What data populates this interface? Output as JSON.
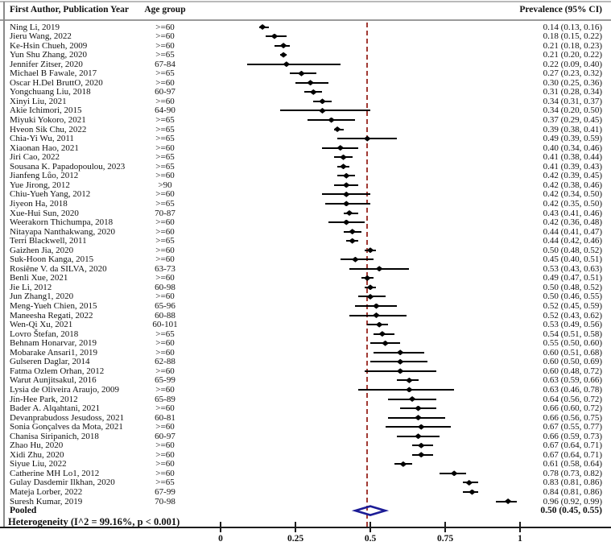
{
  "headers": {
    "author": "First Author, Publication Year",
    "age": "Age group",
    "prevalence": "Prevalence (95% CI)"
  },
  "colors": {
    "marker": "#000000",
    "ci_line": "#000000",
    "reference_line": "#a23a34",
    "pooled_diamond": "#1c1c96",
    "rule_gray": "#9a9a9a"
  },
  "chart_data": {
    "type": "forest",
    "x_axis": {
      "ticks": [
        0,
        0.25,
        0.5,
        0.75,
        1
      ],
      "tick_labels": [
        "0",
        "0.25",
        "0.5",
        "0.75",
        "1"
      ],
      "xlim": [
        0,
        1
      ]
    },
    "reference_line_value": 0.49,
    "studies": [
      {
        "label": "Ning Li, 2019",
        "age": ">=60",
        "est": 0.14,
        "lo": 0.13,
        "hi": 0.16
      },
      {
        "label": "Jieru Wang, 2022",
        "age": ">=60",
        "est": 0.18,
        "lo": 0.15,
        "hi": 0.22
      },
      {
        "label": "Ke-Hsin Chueh, 2009",
        "age": ">=60",
        "est": 0.21,
        "lo": 0.18,
        "hi": 0.23
      },
      {
        "label": "Yun Shu Zhang, 2020",
        "age": ">=65",
        "est": 0.21,
        "lo": 0.2,
        "hi": 0.22
      },
      {
        "label": "Jennifer Zitser, 2020",
        "age": "67-84",
        "est": 0.22,
        "lo": 0.09,
        "hi": 0.4
      },
      {
        "label": "Michael B Fawale, 2017",
        "age": ">=65",
        "est": 0.27,
        "lo": 0.23,
        "hi": 0.32
      },
      {
        "label": "Oscar H.Del BruttO, 2020",
        "age": ">=60",
        "est": 0.3,
        "lo": 0.25,
        "hi": 0.36
      },
      {
        "label": "Yongchuang Liu, 2018",
        "age": "60-97",
        "est": 0.31,
        "lo": 0.28,
        "hi": 0.34
      },
      {
        "label": "Xinyi Liu, 2021",
        "age": ">=60",
        "est": 0.34,
        "lo": 0.31,
        "hi": 0.37
      },
      {
        "label": "Akie Ichimori, 2015",
        "age": "64-90",
        "est": 0.34,
        "lo": 0.2,
        "hi": 0.5
      },
      {
        "label": "Miyuki Yokoro, 2021",
        "age": ">=65",
        "est": 0.37,
        "lo": 0.29,
        "hi": 0.45
      },
      {
        "label": "Hveon Sik Chu, 2022",
        "age": ">=65",
        "est": 0.39,
        "lo": 0.38,
        "hi": 0.41
      },
      {
        "label": "Chia-Yi Wu, 2011",
        "age": ">=65",
        "est": 0.49,
        "lo": 0.39,
        "hi": 0.59
      },
      {
        "label": "Xiaonan Hao, 2021",
        "age": ">=60",
        "est": 0.4,
        "lo": 0.34,
        "hi": 0.46
      },
      {
        "label": "Jiri Cao, 2022",
        "age": ">=65",
        "est": 0.41,
        "lo": 0.38,
        "hi": 0.44
      },
      {
        "label": "Sousana K. Papadopoulou, 2023",
        "age": ">=65",
        "est": 0.41,
        "lo": 0.39,
        "hi": 0.43
      },
      {
        "label": "Jianfeng Lůo, 2012",
        "age": ">=60",
        "est": 0.42,
        "lo": 0.39,
        "hi": 0.45
      },
      {
        "label": "Yue Jirong, 2012",
        "age": ">90",
        "est": 0.42,
        "lo": 0.38,
        "hi": 0.46
      },
      {
        "label": "Chiu-Yueh Yang, 2012",
        "age": ">=60",
        "est": 0.42,
        "lo": 0.34,
        "hi": 0.5
      },
      {
        "label": "Jiyeon Ha, 2018",
        "age": ">=65",
        "est": 0.42,
        "lo": 0.35,
        "hi": 0.5
      },
      {
        "label": "Xue-Hui Sun, 2020",
        "age": "70-87",
        "est": 0.43,
        "lo": 0.41,
        "hi": 0.46
      },
      {
        "label": "Weerakorn Thichumpa, 2018",
        "age": ">=60",
        "est": 0.42,
        "lo": 0.36,
        "hi": 0.48
      },
      {
        "label": "Nitayapa Nanthakwang, 2020",
        "age": ">=60",
        "est": 0.44,
        "lo": 0.41,
        "hi": 0.47
      },
      {
        "label": "Terri Blackwell, 2011",
        "age": ">=65",
        "est": 0.44,
        "lo": 0.42,
        "hi": 0.46
      },
      {
        "label": "Gaizhen Jia, 2020",
        "age": ">=60",
        "est": 0.5,
        "lo": 0.48,
        "hi": 0.52
      },
      {
        "label": "Suk-Hoon Kanga, 2015",
        "age": ">=60",
        "est": 0.45,
        "lo": 0.4,
        "hi": 0.51
      },
      {
        "label": "Rosiêne V. da SILVA, 2020",
        "age": "63-73",
        "est": 0.53,
        "lo": 0.43,
        "hi": 0.63
      },
      {
        "label": "Benli Xue, 2021",
        "age": ">=60",
        "est": 0.49,
        "lo": 0.47,
        "hi": 0.51
      },
      {
        "label": "Jie Li, 2012",
        "age": "60-98",
        "est": 0.5,
        "lo": 0.48,
        "hi": 0.52
      },
      {
        "label": "Jun Zhang1, 2020",
        "age": ">=60",
        "est": 0.5,
        "lo": 0.46,
        "hi": 0.55
      },
      {
        "label": "Meng-Yueh Chien, 2015",
        "age": "65-96",
        "est": 0.52,
        "lo": 0.45,
        "hi": 0.59
      },
      {
        "label": "Maneesha Regati, 2022",
        "age": "60-88",
        "est": 0.52,
        "lo": 0.43,
        "hi": 0.62
      },
      {
        "label": "Wen-Qi Xu, 2021",
        "age": "60-101",
        "est": 0.53,
        "lo": 0.49,
        "hi": 0.56
      },
      {
        "label": "Lovro Štefan, 2018",
        "age": ">=65",
        "est": 0.54,
        "lo": 0.51,
        "hi": 0.58
      },
      {
        "label": "Behnam Honarvar, 2019",
        "age": ">=60",
        "est": 0.55,
        "lo": 0.5,
        "hi": 0.6
      },
      {
        "label": "Mobarake Ansari1, 2019",
        "age": ">=60",
        "est": 0.6,
        "lo": 0.51,
        "hi": 0.68
      },
      {
        "label": "Gulseren Daglar, 2014",
        "age": "62-88",
        "est": 0.6,
        "lo": 0.5,
        "hi": 0.69
      },
      {
        "label": "Fatma Ozlem Orhan, 2012",
        "age": ">=60",
        "est": 0.6,
        "lo": 0.48,
        "hi": 0.72
      },
      {
        "label": "Warut Aunjitsakul, 2016",
        "age": "65-99",
        "est": 0.63,
        "lo": 0.59,
        "hi": 0.66
      },
      {
        "label": "Lysia de Oliveira Araujo, 2009",
        "age": ">=60",
        "est": 0.63,
        "lo": 0.46,
        "hi": 0.78
      },
      {
        "label": "Jin-Hee Park, 2012",
        "age": "65-89",
        "est": 0.64,
        "lo": 0.56,
        "hi": 0.72
      },
      {
        "label": "Bader A. Alqahtani, 2021",
        "age": ">=60",
        "est": 0.66,
        "lo": 0.6,
        "hi": 0.72
      },
      {
        "label": "Devanprabudoss Jesudoss, 2021",
        "age": "60-81",
        "est": 0.66,
        "lo": 0.56,
        "hi": 0.75
      },
      {
        "label": "Sonia Gonçalves da Mota, 2021",
        "age": ">=60",
        "est": 0.67,
        "lo": 0.55,
        "hi": 0.77
      },
      {
        "label": "Chanisa Siripanich, 2018",
        "age": "60-97",
        "est": 0.66,
        "lo": 0.59,
        "hi": 0.73
      },
      {
        "label": "Zhao Hu, 2020",
        "age": ">=60",
        "est": 0.67,
        "lo": 0.64,
        "hi": 0.71
      },
      {
        "label": "Xidi Zhu, 2020",
        "age": ">=60",
        "est": 0.67,
        "lo": 0.64,
        "hi": 0.71
      },
      {
        "label": "Siyue Liu, 2022",
        "age": ">=60",
        "est": 0.61,
        "lo": 0.58,
        "hi": 0.64
      },
      {
        "label": "Catherine MH Lo1, 2012",
        "age": ">=60",
        "est": 0.78,
        "lo": 0.73,
        "hi": 0.82
      },
      {
        "label": "Gulay Dasdemir Ilkhan, 2020",
        "age": ">=65",
        "est": 0.83,
        "lo": 0.81,
        "hi": 0.86
      },
      {
        "label": "Mateja Lorber, 2022",
        "age": "67-99",
        "est": 0.84,
        "lo": 0.81,
        "hi": 0.86
      },
      {
        "label": "Suresh Kumar, 2019",
        "age": "70-98",
        "est": 0.96,
        "lo": 0.92,
        "hi": 0.99
      }
    ],
    "pooled": {
      "label": "Pooled",
      "est": 0.5,
      "lo": 0.45,
      "hi": 0.55
    },
    "heterogeneity": "Heterogeneity (I^2 = 99.16%, p < 0.001)"
  }
}
